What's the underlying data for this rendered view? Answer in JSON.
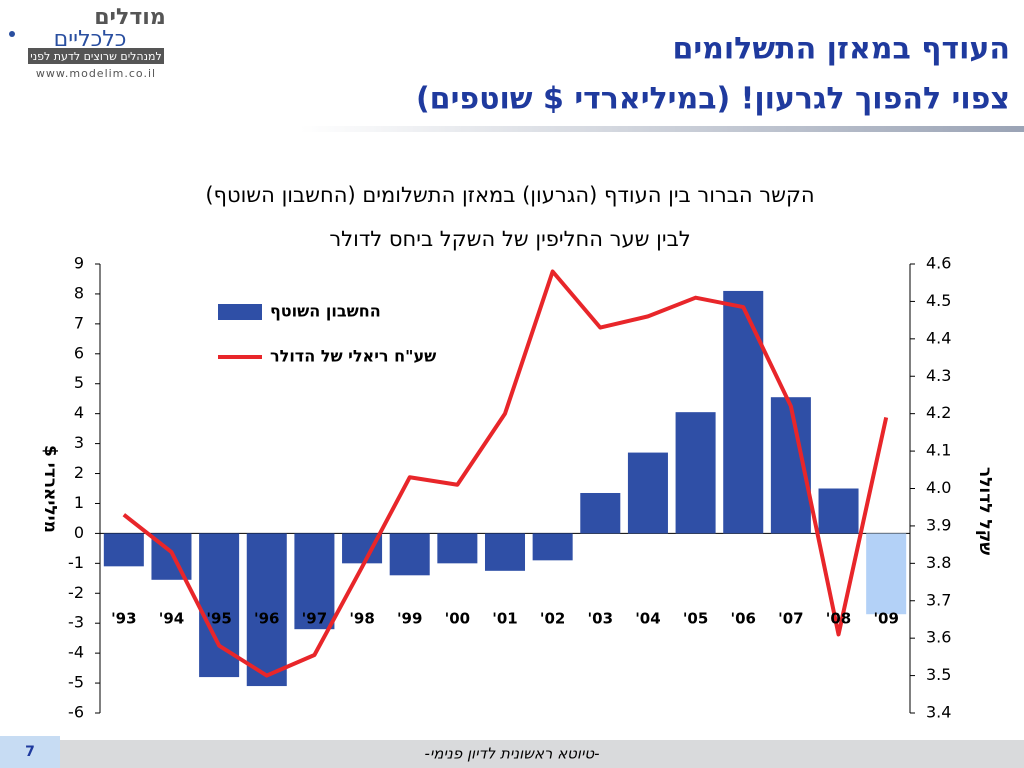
{
  "logo": {
    "line1": "מודלים",
    "line2": "כלכליים",
    "tagline": "למנהלים שרוצים לדעת לפני",
    "url": "www.modelim.co.il"
  },
  "header": {
    "title": "העודף במאזן התשלומים",
    "subtitle": "צפוי להפוך לגרעון! (במיליארדי $ שוטפים)"
  },
  "chart_data": {
    "type": "combo",
    "title": "הקשר הברור בין העודף (הגרעון) במאזן התשלומים (החשבון השוטף)",
    "subtitle": "לבין שער החליפין של השקל ביחס לדולר",
    "categories": [
      "'93",
      "'94",
      "'95",
      "'96",
      "'97",
      "'98",
      "'99",
      "'00",
      "'01",
      "'02",
      "'03",
      "'04",
      "'05",
      "'06",
      "'07",
      "'08",
      "'09"
    ],
    "series": [
      {
        "name": "החשבון השוטף",
        "type": "bar",
        "color": "#2f4fa6",
        "colors": [
          "#2f4fa6",
          "#2f4fa6",
          "#2f4fa6",
          "#2f4fa6",
          "#2f4fa6",
          "#2f4fa6",
          "#2f4fa6",
          "#2f4fa6",
          "#2f4fa6",
          "#2f4fa6",
          "#2f4fa6",
          "#2f4fa6",
          "#2f4fa6",
          "#2f4fa6",
          "#2f4fa6",
          "#2f4fa6",
          "#b3d1f7"
        ],
        "values": [
          -1.1,
          -1.55,
          -4.8,
          -5.1,
          -3.2,
          -1.0,
          -1.4,
          -1.0,
          -1.25,
          -0.9,
          1.35,
          2.7,
          4.05,
          8.1,
          4.55,
          1.5,
          -2.7
        ]
      },
      {
        "name": "שע\"ח ריאלי של הדולר",
        "type": "line",
        "axis": "y2",
        "color": "#e8262a",
        "values": [
          3.93,
          3.83,
          3.58,
          3.5,
          3.555,
          3.79,
          4.03,
          4.01,
          4.2,
          4.58,
          4.43,
          4.46,
          4.51,
          4.485,
          4.22,
          3.61,
          4.19
        ]
      }
    ],
    "ylabel": "מיליארדי $",
    "y2label": "שקל לדולר",
    "ylim": [
      -6,
      9
    ],
    "yticks": [
      -6,
      -5,
      -4,
      -3,
      -2,
      -1,
      0,
      1,
      2,
      3,
      4,
      5,
      6,
      7,
      8,
      9
    ],
    "y2lim": [
      3.4,
      4.6
    ],
    "y2ticks": [
      3.4,
      3.5,
      3.6,
      3.7,
      3.8,
      3.9,
      {
        "value": 4,
        "label": "4.0"
      },
      4.1,
      4.2,
      4.3,
      4.4,
      4.5,
      4.6
    ],
    "grid": false,
    "legend": "top-left"
  },
  "footer": {
    "page": "7",
    "text": "-טיוטא ראשונית לדיון פנימי-"
  }
}
